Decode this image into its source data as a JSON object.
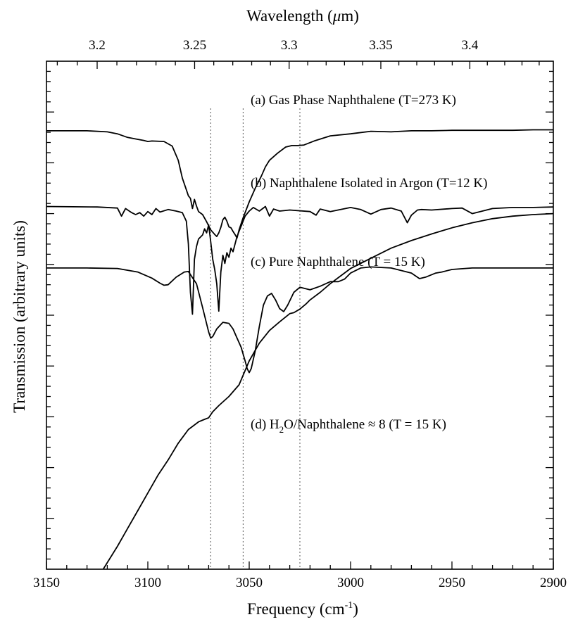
{
  "chart_data": {
    "type": "line",
    "title": "",
    "xlabel": "Frequency (cm",
    "xlabel_sup": "-1",
    "xlabel_close": ")",
    "x2label": "Wavelength (",
    "x2label_mu": "μ",
    "x2label_close": "m)",
    "ylabel": "Transmission (arbitrary units)",
    "xlim": [
      3150,
      2900
    ],
    "x_ticks": [
      3150,
      3100,
      3050,
      3000,
      2950,
      2900
    ],
    "x2_ticks": [
      3.2,
      3.25,
      3.3,
      3.35,
      3.4
    ],
    "ylim": [
      0,
      10
    ],
    "y_minor_ticks": [
      1,
      2,
      3,
      4,
      5,
      6,
      7,
      8,
      9
    ],
    "reference_lines": [
      3069,
      3053,
      3025
    ],
    "annotations": [
      {
        "id": "a",
        "text": "(a) Gas Phase Naphthalene (T=273 K)"
      },
      {
        "id": "b",
        "text": "(b) Naphthalene Isolated in Argon (T=12 K)"
      },
      {
        "id": "c",
        "text": "(c) Pure Naphthalene (T = 15 K)"
      },
      {
        "id": "d",
        "pre": "(d) H",
        "sub": "2",
        "post": "O/Naphthalene ≈ 8  (T = 15 K)"
      }
    ],
    "series": [
      {
        "id": "a",
        "x": [
          3150,
          3130,
          3120,
          3115,
          3110,
          3106,
          3102,
          3100,
          3098,
          3092,
          3088,
          3085,
          3083,
          3081,
          3080,
          3079,
          3078,
          3077,
          3076,
          3075,
          3073,
          3071,
          3069,
          3067,
          3066,
          3065,
          3064,
          3063,
          3062,
          3061,
          3060,
          3059,
          3058,
          3057,
          3056,
          3055,
          3053,
          3050,
          3047,
          3044,
          3042,
          3040,
          3036,
          3032,
          3029,
          3026,
          3023,
          3018,
          3010,
          3000,
          2990,
          2980,
          2970,
          2960,
          2950,
          2940,
          2930,
          2920,
          2910,
          2900
        ],
        "y": [
          8.63,
          8.63,
          8.61,
          8.57,
          8.5,
          8.47,
          8.44,
          8.42,
          8.43,
          8.42,
          8.33,
          8.05,
          7.7,
          7.47,
          7.35,
          7.3,
          7.1,
          7.28,
          7.15,
          7.04,
          6.98,
          6.84,
          6.68,
          6.59,
          6.55,
          6.62,
          6.73,
          6.88,
          6.93,
          6.85,
          6.74,
          6.72,
          6.65,
          6.59,
          6.52,
          6.68,
          6.92,
          7.23,
          7.5,
          7.74,
          7.92,
          8.05,
          8.19,
          8.31,
          8.34,
          8.34,
          8.35,
          8.43,
          8.53,
          8.57,
          8.62,
          8.61,
          8.63,
          8.63,
          8.64,
          8.64,
          8.64,
          8.64,
          8.65,
          8.65
        ]
      },
      {
        "id": "b",
        "x": [
          3150,
          3125,
          3115,
          3113,
          3111,
          3108,
          3106,
          3104,
          3102,
          3100,
          3098,
          3096,
          3094,
          3090,
          3086,
          3083,
          3081,
          3080,
          3079,
          3078,
          3077,
          3076,
          3075,
          3073,
          3072,
          3071,
          3070,
          3069,
          3068,
          3067,
          3066,
          3065,
          3064,
          3063,
          3062,
          3061,
          3060,
          3059,
          3058,
          3056,
          3054,
          3052,
          3050,
          3048,
          3045,
          3042,
          3040,
          3038,
          3035,
          3030,
          3020,
          3017,
          3015,
          3010,
          3000,
          2995,
          2990,
          2985,
          2980,
          2975,
          2972,
          2970,
          2967,
          2965,
          2960,
          2950,
          2945,
          2940,
          2930,
          2920,
          2910,
          2900
        ],
        "y": [
          7.14,
          7.13,
          7.11,
          6.95,
          7.1,
          7.02,
          6.98,
          7.02,
          6.95,
          7.04,
          6.98,
          7.1,
          7.03,
          7.08,
          7.05,
          7.02,
          6.85,
          6.4,
          5.45,
          5.02,
          6.1,
          6.35,
          6.5,
          6.58,
          6.7,
          6.62,
          6.78,
          6.45,
          6.1,
          5.9,
          5.62,
          5.08,
          5.85,
          6.18,
          6.02,
          6.23,
          6.14,
          6.32,
          6.25,
          6.55,
          6.75,
          6.95,
          7.05,
          7.12,
          7.05,
          7.14,
          6.95,
          7.09,
          7.05,
          7.07,
          7.04,
          6.97,
          7.09,
          7.04,
          7.12,
          7.08,
          6.99,
          7.08,
          7.11,
          7.05,
          6.82,
          6.97,
          7.07,
          7.08,
          7.07,
          7.1,
          7.11,
          7.0,
          7.1,
          7.12,
          7.12,
          7.13
        ]
      },
      {
        "id": "c",
        "x": [
          3150,
          3130,
          3115,
          3105,
          3098,
          3094,
          3092,
          3090,
          3086,
          3082,
          3080,
          3076,
          3073,
          3070,
          3069,
          3068,
          3066,
          3063,
          3060,
          3058,
          3056,
          3054,
          3052,
          3051,
          3050,
          3049,
          3047,
          3045,
          3043,
          3041,
          3039,
          3037,
          3035,
          3033,
          3031,
          3028,
          3025,
          3020,
          3015,
          3010,
          3006,
          3003,
          3000,
          2995,
          2990,
          2980,
          2970,
          2966,
          2963,
          2958,
          2955,
          2950,
          2940,
          2930,
          2920,
          2910,
          2900
        ],
        "y": [
          5.93,
          5.93,
          5.92,
          5.85,
          5.73,
          5.63,
          5.59,
          5.6,
          5.75,
          5.85,
          5.86,
          5.62,
          5.15,
          4.67,
          4.55,
          4.58,
          4.73,
          4.86,
          4.84,
          4.73,
          4.55,
          4.37,
          4.1,
          3.95,
          3.87,
          3.95,
          4.3,
          4.78,
          5.2,
          5.38,
          5.43,
          5.3,
          5.13,
          5.07,
          5.2,
          5.45,
          5.55,
          5.5,
          5.57,
          5.66,
          5.66,
          5.71,
          5.83,
          5.93,
          5.95,
          5.93,
          5.83,
          5.72,
          5.75,
          5.83,
          5.85,
          5.9,
          5.93,
          5.93,
          5.93,
          5.93,
          5.93
        ]
      },
      {
        "id": "d",
        "x": [
          3122,
          3115,
          3110,
          3105,
          3100,
          3095,
          3090,
          3085,
          3080,
          3075,
          3072,
          3070,
          3068,
          3065,
          3060,
          3055,
          3050,
          3045,
          3040,
          3035,
          3030,
          3028,
          3025,
          3022,
          3020,
          3015,
          3010,
          3005,
          3000,
          2990,
          2980,
          2970,
          2960,
          2950,
          2940,
          2930,
          2920,
          2910,
          2900
        ],
        "y": [
          0.0,
          0.45,
          0.8,
          1.15,
          1.5,
          1.85,
          2.15,
          2.48,
          2.75,
          2.9,
          2.95,
          2.98,
          3.1,
          3.22,
          3.4,
          3.63,
          4.1,
          4.45,
          4.7,
          4.87,
          5.03,
          5.05,
          5.12,
          5.22,
          5.3,
          5.45,
          5.62,
          5.77,
          5.92,
          6.12,
          6.32,
          6.47,
          6.6,
          6.72,
          6.82,
          6.9,
          6.95,
          6.98,
          7.0
        ]
      }
    ]
  }
}
